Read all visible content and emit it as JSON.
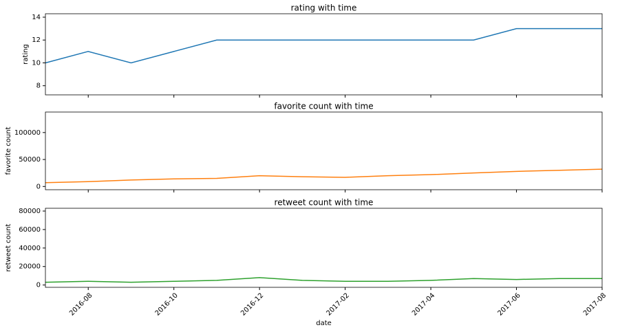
{
  "chart_data": [
    {
      "type": "line",
      "title": "rating with time",
      "ylabel": "rating",
      "color": "#1f77b4",
      "x": [
        "2016-07",
        "2016-08",
        "2016-09",
        "2016-10",
        "2016-11",
        "2016-12",
        "2017-01",
        "2017-02",
        "2017-03",
        "2017-04",
        "2017-05",
        "2017-06",
        "2017-07",
        "2017-08"
      ],
      "values": [
        10,
        11,
        10,
        11,
        12,
        12,
        12,
        12,
        12,
        12,
        12,
        13,
        13,
        13
      ],
      "xlim": [
        "2016-07",
        "2017-08"
      ],
      "xticks": [
        "2016-08",
        "2016-10",
        "2016-12",
        "2017-02",
        "2017-04",
        "2017-06",
        "2017-08"
      ],
      "ylim": [
        7.2,
        14.3
      ],
      "yticks": [
        8,
        10,
        12,
        14
      ]
    },
    {
      "type": "line",
      "title": "favorite count with time",
      "ylabel": "favorite count",
      "color": "#ff7f0e",
      "x": [
        "2016-07",
        "2016-08",
        "2016-09",
        "2016-10",
        "2016-11",
        "2016-12",
        "2017-01",
        "2017-02",
        "2017-03",
        "2017-04",
        "2017-05",
        "2017-06",
        "2017-07",
        "2017-08"
      ],
      "values": [
        7000,
        9000,
        12000,
        14000,
        15000,
        20000,
        18000,
        17000,
        20000,
        22000,
        25000,
        28000,
        30000,
        32000
      ],
      "xlim": [
        "2016-07",
        "2017-08"
      ],
      "xticks": [
        "2016-08",
        "2016-10",
        "2016-12",
        "2017-02",
        "2017-04",
        "2017-06",
        "2017-08"
      ],
      "ylim": [
        -6000,
        138000
      ],
      "yticks": [
        0,
        50000,
        100000
      ]
    },
    {
      "type": "line",
      "title": "retweet count with time",
      "ylabel": "retweet count",
      "xlabel": "date",
      "color": "#2ca02c",
      "x": [
        "2016-07",
        "2016-08",
        "2016-09",
        "2016-10",
        "2016-11",
        "2016-12",
        "2017-01",
        "2017-02",
        "2017-03",
        "2017-04",
        "2017-05",
        "2017-06",
        "2017-07",
        "2017-08"
      ],
      "values": [
        3000,
        4000,
        3000,
        4000,
        5000,
        8000,
        5000,
        4000,
        4000,
        5000,
        7000,
        6000,
        7000,
        7000
      ],
      "xlim": [
        "2016-07",
        "2017-08"
      ],
      "xticks": [
        "2016-08",
        "2016-10",
        "2016-12",
        "2017-02",
        "2017-04",
        "2017-06",
        "2017-08"
      ],
      "ylim": [
        -2500,
        83000
      ],
      "yticks": [
        0,
        20000,
        40000,
        60000,
        80000
      ]
    }
  ]
}
